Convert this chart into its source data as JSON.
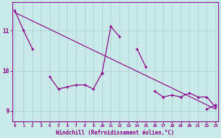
{
  "xlabel": "Windchill (Refroidissement éolien,°C)",
  "background_color": "#cce9e9",
  "grid_color": "#b0d8d8",
  "line_color": "#880088",
  "x_values": [
    0,
    1,
    2,
    3,
    4,
    5,
    6,
    7,
    8,
    9,
    10,
    11,
    12,
    13,
    14,
    15,
    16,
    17,
    18,
    19,
    20,
    21,
    22,
    23
  ],
  "upper_line": [
    11.5,
    11.0,
    10.55,
    null,
    null,
    null,
    null,
    null,
    null,
    null,
    9.95,
    11.1,
    10.85,
    null,
    10.55,
    10.1,
    null,
    null,
    null,
    null,
    null,
    null,
    null,
    null
  ],
  "lower_line": [
    null,
    null,
    null,
    null,
    9.85,
    9.55,
    9.6,
    9.65,
    9.65,
    9.55,
    9.95,
    null,
    null,
    null,
    null,
    null,
    9.5,
    9.35,
    9.4,
    9.35,
    9.45,
    9.35,
    9.35,
    9.1
  ],
  "extra_segment": [
    null,
    null,
    null,
    null,
    null,
    null,
    null,
    null,
    null,
    null,
    null,
    null,
    null,
    null,
    null,
    null,
    null,
    null,
    null,
    null,
    null,
    null,
    9.05,
    9.15
  ],
  "trend_x": [
    0,
    23
  ],
  "trend_y": [
    11.45,
    9.05
  ],
  "ylim": [
    8.75,
    11.7
  ],
  "xlim": [
    -0.3,
    23.3
  ],
  "yticks": [
    9,
    10,
    11
  ],
  "xticks": [
    0,
    1,
    2,
    3,
    4,
    5,
    6,
    7,
    8,
    9,
    10,
    11,
    12,
    13,
    14,
    15,
    16,
    17,
    18,
    19,
    20,
    21,
    22,
    23
  ],
  "figsize": [
    3.2,
    2.0
  ],
  "dpi": 100
}
